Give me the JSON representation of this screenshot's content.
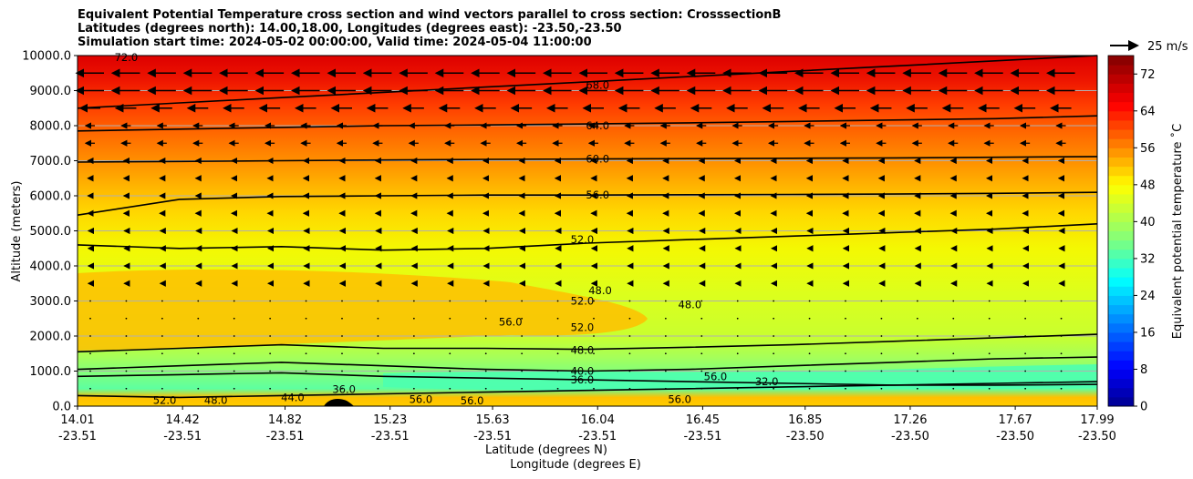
{
  "title_lines": [
    "Equivalent Potential Temperature cross section and wind vectors parallel to cross section: CrosssectionB",
    "Latitudes (degrees north): 14.00,18.00, Longitudes (degrees east): -23.50,-23.50",
    "Simulation start time: 2024-05-02 00:00:00, Valid time: 2024-05-04 11:00:00"
  ],
  "chart_data": {
    "type": "heatmap",
    "subtype": "filled contour cross section with wind vectors",
    "ylabel": "Altitude (meters)",
    "xlabel_lines": [
      "Latitude (degrees N)",
      "Longitude (degrees E)"
    ],
    "ylim": [
      0,
      10000
    ],
    "y_ticks": [
      "0.0",
      "1000.0",
      "2000.0",
      "3000.0",
      "4000.0",
      "5000.0",
      "6000.0",
      "7000.0",
      "8000.0",
      "9000.0",
      "10000.0"
    ],
    "x_ticks": [
      {
        "lat": "14.01",
        "lon": "-23.51"
      },
      {
        "lat": "14.42",
        "lon": "-23.51"
      },
      {
        "lat": "14.82",
        "lon": "-23.51"
      },
      {
        "lat": "15.23",
        "lon": "-23.51"
      },
      {
        "lat": "15.63",
        "lon": "-23.51"
      },
      {
        "lat": "16.04",
        "lon": "-23.51"
      },
      {
        "lat": "16.45",
        "lon": "-23.51"
      },
      {
        "lat": "16.85",
        "lon": "-23.50"
      },
      {
        "lat": "17.26",
        "lon": "-23.50"
      },
      {
        "lat": "17.67",
        "lon": "-23.50"
      },
      {
        "lat": "17.99",
        "lon": "-23.50"
      }
    ],
    "grid": true,
    "colorbar": {
      "label": "Equivalent potential temperature $^\\circ$C",
      "label_display": "Equivalent potential temperature ˚C",
      "range": [
        0,
        76
      ],
      "ticks": [
        "0",
        "8",
        "16",
        "24",
        "32",
        "40",
        "48",
        "56",
        "64",
        "72"
      ],
      "colormap": "jet"
    },
    "quiver_key": "25 m/s",
    "contour_lines": [
      {
        "value": 68,
        "label": "68.0",
        "heights": [
          8500,
          8650,
          8800,
          8950,
          9100,
          9250,
          9400,
          9550,
          9700,
          9850,
          10000
        ]
      },
      {
        "value": 64,
        "label": "64.0",
        "heights": [
          7850,
          7900,
          7950,
          8000,
          8020,
          8050,
          8080,
          8120,
          8160,
          8200,
          8280
        ]
      },
      {
        "value": 60,
        "label": "60.0",
        "heights": [
          6960,
          6980,
          7000,
          7020,
          7040,
          7050,
          7060,
          7070,
          7080,
          7100,
          7120
        ]
      },
      {
        "value": 56,
        "label": "56.0",
        "heights": [
          5450,
          5900,
          5980,
          6000,
          6020,
          6020,
          6030,
          6040,
          6050,
          6070,
          6100
        ]
      },
      {
        "value": 52,
        "label": "52.0",
        "heights": [
          4600,
          4500,
          4550,
          4450,
          4500,
          4650,
          4750,
          4850,
          4950,
          5050,
          5200
        ]
      },
      {
        "value": 48,
        "label": "48.0",
        "heights": [
          1550,
          1650,
          1750,
          1650,
          1650,
          1620,
          1680,
          1750,
          1850,
          1950,
          2050
        ]
      },
      {
        "value": 40,
        "label": "40.0",
        "heights": [
          1050,
          1150,
          1250,
          1150,
          1050,
          1000,
          1050,
          1150,
          1250,
          1350,
          1400
        ]
      },
      {
        "value": 36,
        "label": "36.0",
        "heights": [
          850,
          900,
          950,
          850,
          800,
          750,
          700,
          650,
          600,
          650,
          700
        ]
      },
      {
        "value": 32,
        "label": "32.0",
        "heights": [
          300,
          250,
          300,
          350,
          400,
          450,
          500,
          550,
          600,
          600,
          620
        ]
      }
    ],
    "contour_labels": [
      {
        "text": "68.0",
        "lat": 16.04,
        "alt": 9150
      },
      {
        "text": "64.0",
        "lat": 16.04,
        "alt": 8000
      },
      {
        "text": "60.0",
        "lat": 16.04,
        "alt": 7050
      },
      {
        "text": "56.0",
        "lat": 16.04,
        "alt": 6020
      },
      {
        "text": "52.0",
        "lat": 15.98,
        "alt": 4750
      },
      {
        "text": "52.0",
        "lat": 15.98,
        "alt": 3000
      },
      {
        "text": "52.0",
        "lat": 15.98,
        "alt": 2250
      },
      {
        "text": "48.0",
        "lat": 15.98,
        "alt": 1600
      },
      {
        "text": "40.0",
        "lat": 15.98,
        "alt": 1000
      },
      {
        "text": "36.0",
        "lat": 15.98,
        "alt": 750
      },
      {
        "text": "56.0",
        "lat": 15.7,
        "alt": 2400
      },
      {
        "text": "48.0",
        "lat": 16.05,
        "alt": 3300
      },
      {
        "text": "48.0",
        "lat": 16.4,
        "alt": 2900
      },
      {
        "text": "32.0",
        "lat": 16.7,
        "alt": 700
      },
      {
        "text": "44.0",
        "lat": 14.85,
        "alt": 250
      },
      {
        "text": "48.0",
        "lat": 14.55,
        "alt": 170
      },
      {
        "text": "52.0",
        "lat": 14.35,
        "alt": 170
      },
      {
        "text": "36.0",
        "lat": 15.05,
        "alt": 480
      },
      {
        "text": "56.0",
        "lat": 15.35,
        "alt": 200
      },
      {
        "text": "56.0",
        "lat": 15.55,
        "alt": 150
      },
      {
        "text": "56.0",
        "lat": 16.36,
        "alt": 200
      },
      {
        "text": "56.0",
        "lat": 16.5,
        "alt": 850
      },
      {
        "text": "72.0",
        "lat": 14.2,
        "alt": 9950
      }
    ]
  }
}
